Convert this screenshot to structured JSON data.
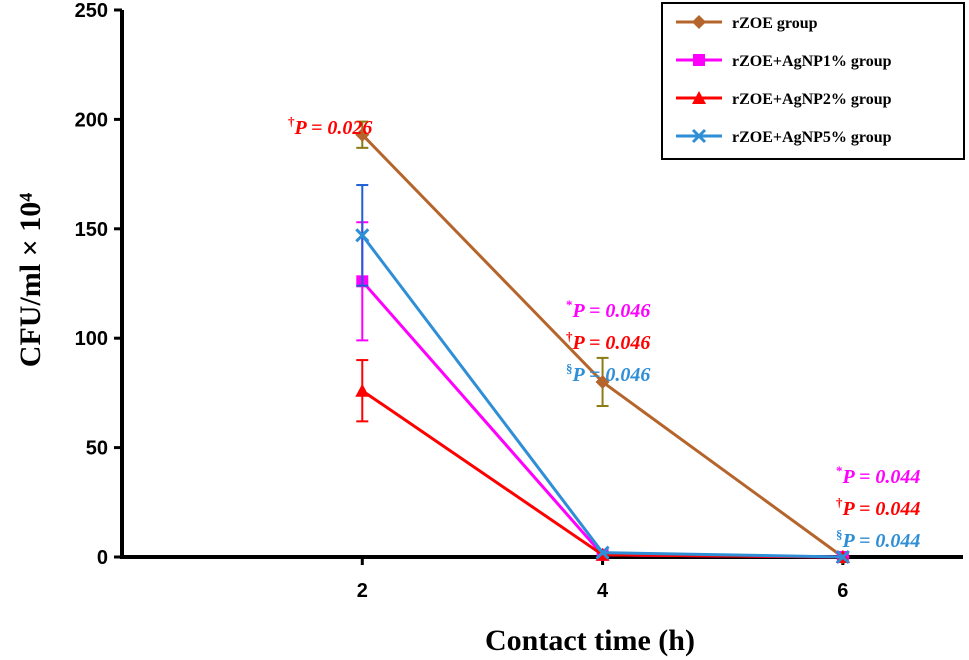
{
  "chart_data": {
    "type": "line",
    "xlabel": "Contact time (h)",
    "ylabel": "CFU/ml × 10⁴",
    "x": [
      2,
      4,
      6
    ],
    "xlim": [
      0,
      7
    ],
    "ylim": [
      0,
      250
    ],
    "yticks": [
      0,
      50,
      100,
      150,
      200,
      250
    ],
    "xticks": [
      2,
      4,
      6
    ],
    "grid": false,
    "legend_position": "top-right",
    "series": [
      {
        "name": "rZOE group",
        "color": "#b5652b",
        "marker": "diamond",
        "values": [
          193,
          80,
          0
        ],
        "errors": [
          6,
          11,
          0
        ],
        "error_color": "#8c7a14"
      },
      {
        "name": "rZOE+AgNP1%  group",
        "color": "#ff00ff",
        "marker": "square",
        "values": [
          126,
          1,
          0
        ],
        "errors": [
          27,
          0,
          0
        ],
        "error_color": "#ff00ff"
      },
      {
        "name": "rZOE+AgNP2%  group",
        "color": "#ff0000",
        "marker": "triangle",
        "values": [
          76,
          1,
          0
        ],
        "errors": [
          14,
          0,
          0
        ],
        "error_color": "#ff0000"
      },
      {
        "name": "rZOE+AgNP5%  group",
        "color": "#2e8ed6",
        "marker": "x",
        "values": [
          147,
          2,
          0
        ],
        "errors": [
          23,
          0,
          0
        ],
        "error_color": "#1e5fd6"
      }
    ],
    "annotations": [
      {
        "x": 2,
        "lines": [
          {
            "symbol": "†",
            "text": "P = 0.026",
            "color": "#ff0000"
          }
        ]
      },
      {
        "x": 4,
        "lines": [
          {
            "symbol": "*",
            "text": "P = 0.046",
            "color": "#ff00ff"
          },
          {
            "symbol": "†",
            "text": "P = 0.046",
            "color": "#ff0000"
          },
          {
            "symbol": "§",
            "text": "P = 0.046",
            "color": "#2e8ed6"
          }
        ]
      },
      {
        "x": 6,
        "lines": [
          {
            "symbol": "*",
            "text": "P = 0.044",
            "color": "#ff00ff"
          },
          {
            "symbol": "†",
            "text": "P = 0.044",
            "color": "#ff0000"
          },
          {
            "symbol": "§",
            "text": "P = 0.044",
            "color": "#2e8ed6"
          }
        ]
      }
    ]
  }
}
